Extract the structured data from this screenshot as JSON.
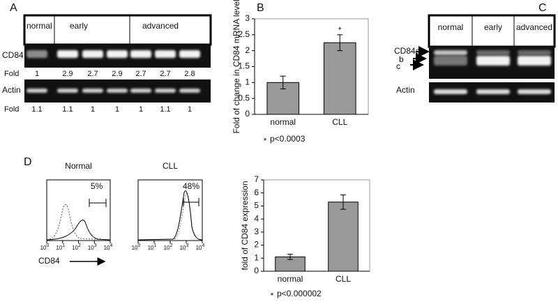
{
  "panel_labels": [
    "A",
    "B",
    "C",
    "D"
  ],
  "gel_a": {
    "groups": [
      "normal",
      "early",
      "advanced"
    ],
    "rows": [
      "CD84",
      "Actin"
    ],
    "fold_label": "Fold",
    "cd84_fold": [
      1,
      2.9,
      2.7,
      2.9,
      2.7,
      2.7,
      2.8
    ],
    "actin_fold": [
      1.1,
      1.1,
      1,
      1,
      1,
      1.1,
      1
    ]
  },
  "gel_c": {
    "groups": [
      "normal",
      "early",
      "advanced"
    ],
    "cd84_label": "CD84a",
    "isoforms": [
      "b",
      "c"
    ],
    "actin_label": "Actin"
  },
  "flow": {
    "panels": [
      {
        "title": "Normal",
        "percent": "5%"
      },
      {
        "title": "CLL",
        "percent": "48%"
      }
    ],
    "tick_base": "10",
    "tick_exponents": [
      "0",
      "1",
      "2",
      "3",
      "4"
    ],
    "x_label": "CD84"
  },
  "chart_data": [
    {
      "type": "bar",
      "y_label": "Fold of change in CD84 mRNA level",
      "categories": [
        "normal",
        "CLL"
      ],
      "values": [
        1,
        2.25
      ],
      "errors": [
        0.2,
        0.25
      ],
      "color": "#999999",
      "ylim": [
        0,
        3
      ],
      "yticks": [
        0,
        0.5,
        1,
        1.5,
        2,
        2.5,
        3
      ],
      "note_marker": "*",
      "note": "p<0.0003"
    },
    {
      "type": "bar",
      "y_label": "fold of CD84 expression",
      "categories": [
        "normal",
        "CLL"
      ],
      "values": [
        1.1,
        5.3
      ],
      "errors": [
        0.2,
        0.55
      ],
      "color": "#999999",
      "ylim": [
        0,
        7
      ],
      "yticks": [
        0,
        1,
        2,
        3,
        4,
        5,
        6,
        7
      ],
      "note_marker": "*",
      "note": "p<0.000002"
    }
  ]
}
